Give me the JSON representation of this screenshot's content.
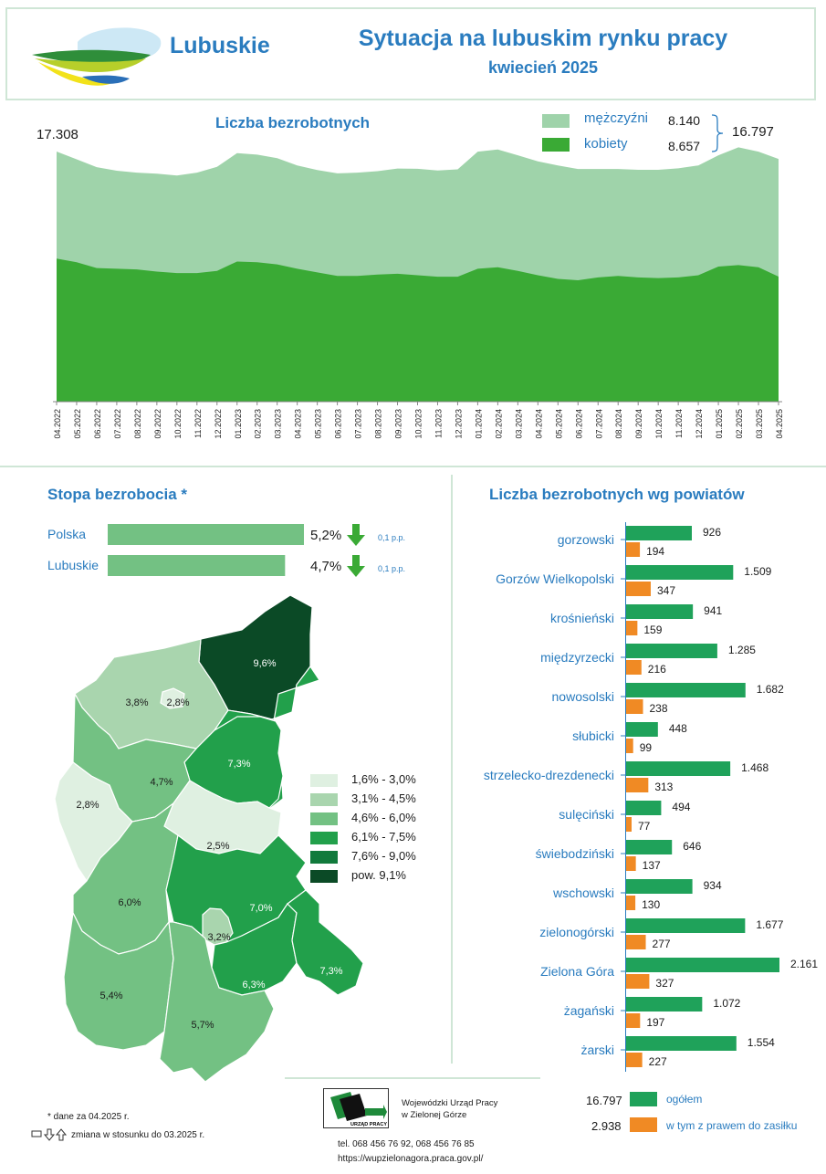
{
  "header": {
    "brand": "Lubuskie",
    "title": "Sytuacja na lubuskim rynku pracy",
    "subtitle": "kwiecień 2025"
  },
  "colors": {
    "men": "#9fd3aa",
    "women": "#3aaa35",
    "total_bar": "#1fa25a",
    "benefit_bar": "#f08a24",
    "accent_blue": "#2a7cbf",
    "map_classes": [
      "#dff0e1",
      "#a9d5ae",
      "#73c183",
      "#22a04b",
      "#117a3c",
      "#0b4a26"
    ]
  },
  "chart_data": [
    {
      "type": "area",
      "title": "Liczba bezrobotnych",
      "first_value_label": "17.308",
      "total_label": "16.797",
      "legend_placement": "top-right",
      "x": [
        "04.2022",
        "05.2022",
        "06.2022",
        "07.2022",
        "08.2022",
        "09.2022",
        "10.2022",
        "11.2022",
        "12.2022",
        "01.2023",
        "02.2023",
        "03.2023",
        "04.2023",
        "05.2023",
        "06.2023",
        "07.2023",
        "08.2023",
        "09.2023",
        "10.2023",
        "11.2023",
        "12.2023",
        "01.2024",
        "02.2024",
        "03.2024",
        "04.2024",
        "05.2024",
        "06.2024",
        "07.2024",
        "08.2024",
        "09.2024",
        "10.2024",
        "11.2024",
        "12.2024",
        "01.2025",
        "02.2025",
        "03.2025",
        "04.2025"
      ],
      "ylim": [
        0,
        17500
      ],
      "series": [
        {
          "name": "kobiety",
          "value_label": "8.657",
          "values": [
            9900,
            9650,
            9250,
            9200,
            9150,
            9000,
            8900,
            8900,
            9050,
            9700,
            9650,
            9500,
            9200,
            8950,
            8700,
            8700,
            8800,
            8850,
            8750,
            8650,
            8650,
            9200,
            9300,
            9050,
            8750,
            8500,
            8400,
            8600,
            8700,
            8600,
            8550,
            8600,
            8750,
            9350,
            9450,
            9300,
            8657
          ]
        },
        {
          "name": "mężczyźni",
          "value_label": "8.140",
          "values": [
            7408,
            7120,
            6980,
            6780,
            6700,
            6780,
            6750,
            6950,
            7200,
            7500,
            7450,
            7350,
            7150,
            7080,
            7100,
            7150,
            7150,
            7280,
            7370,
            7350,
            7430,
            8100,
            8150,
            8000,
            7880,
            7850,
            7700,
            7500,
            7400,
            7450,
            7500,
            7550,
            7600,
            7700,
            8150,
            8000,
            8140
          ]
        }
      ]
    },
    {
      "type": "bar",
      "title": "Stopa bezrobocia *",
      "categories": [
        "Polska",
        "Lubuskie"
      ],
      "values": [
        5.2,
        4.7
      ],
      "value_labels": [
        "5,2%",
        "4,7%"
      ],
      "change_labels": [
        "0,1 p.p.",
        "0,1 p.p."
      ],
      "change_direction": [
        "down",
        "down"
      ]
    },
    {
      "type": "bar",
      "title": "Liczba bezrobotnych wg powiatów",
      "categories": [
        "gorzowski",
        "Gorzów Wielkopolski",
        "krośnieński",
        "międzyrzecki",
        "nowosolski",
        "słubicki",
        "strzelecko-drezdenecki",
        "sulęciński",
        "świebodziński",
        "wschowski",
        "zielonogórski",
        "Zielona Góra",
        "żagański",
        "żarski"
      ],
      "series": [
        {
          "name": "ogółem",
          "values": [
            926,
            1509,
            941,
            1285,
            1682,
            448,
            1468,
            494,
            646,
            934,
            1677,
            2161,
            1072,
            1554
          ],
          "labels": [
            "926",
            "1.509",
            "941",
            "1.285",
            "1.682",
            "448",
            "1.468",
            "494",
            "646",
            "934",
            "1.677",
            "2.161",
            "1.072",
            "1.554"
          ]
        },
        {
          "name": "w tym z prawem do zasiłku",
          "values": [
            194,
            347,
            159,
            216,
            238,
            99,
            313,
            77,
            137,
            130,
            277,
            327,
            197,
            227
          ],
          "labels": [
            "194",
            "347",
            "159",
            "216",
            "238",
            "99",
            "313",
            "77",
            "137",
            "130",
            "277",
            "327",
            "197",
            "227"
          ]
        }
      ],
      "legend_totals": [
        "16.797",
        "2.938"
      ],
      "legend_placement": "bottom"
    }
  ],
  "map": {
    "legend": [
      "1,6% - 3,0%",
      "3,1% - 4,5%",
      "4,6% - 6,0%",
      "6,1% - 7,5%",
      "7,6% - 9,0%",
      "pow. 9,1%"
    ],
    "labels": [
      "9,6%",
      "3,8%",
      "2,8%",
      "7,3%",
      "4,7%",
      "2,8%",
      "2,5%",
      "6,0%",
      "7,0%",
      "3,2%",
      "7,3%",
      "6,3%",
      "5,4%",
      "5,7%"
    ]
  },
  "footnotes": {
    "date_note": "* dane za 04.2025 r.",
    "change_note": "zmiana w stosunku do 03.2025 r."
  },
  "footer": {
    "org_line1": "Wojewódzki Urząd Pracy",
    "org_line2": "w Zielonej Górze",
    "logo_text": "URZĄD PRACY",
    "phone": "tel. 068 456 76 92, 068 456 76 85",
    "url": "https://wupzielonagora.praca.gov.pl/"
  }
}
